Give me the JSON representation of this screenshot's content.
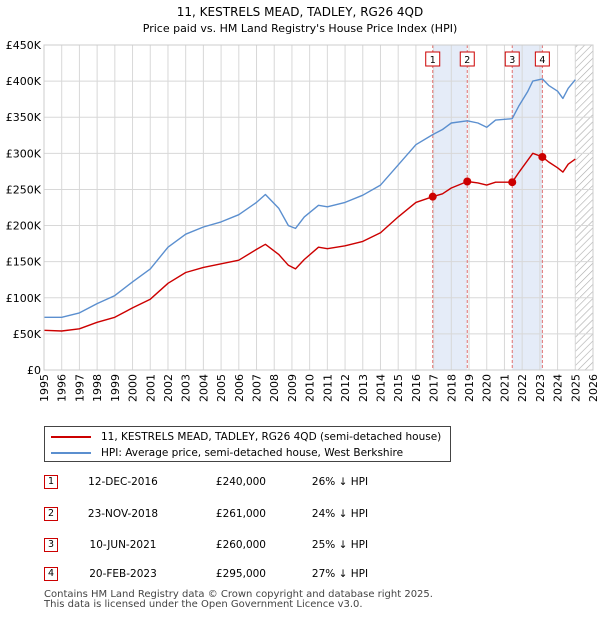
{
  "chart_data": {
    "type": "line",
    "title": "11, KESTRELS MEAD, TADLEY, RG26 4QD",
    "subtitle": "Price paid vs. HM Land Registry's House Price Index (HPI)",
    "xlim": [
      1995,
      2026
    ],
    "ylim": [
      0,
      450000
    ],
    "x_ticks": [
      1995,
      1996,
      1997,
      1998,
      1999,
      2000,
      2001,
      2002,
      2003,
      2004,
      2005,
      2006,
      2007,
      2008,
      2009,
      2010,
      2011,
      2012,
      2013,
      2014,
      2015,
      2016,
      2017,
      2018,
      2019,
      2020,
      2021,
      2022,
      2023,
      2024,
      2025,
      2026
    ],
    "y_ticks": [
      {
        "value": 0,
        "label": "£0"
      },
      {
        "value": 50000,
        "label": "£50K"
      },
      {
        "value": 100000,
        "label": "£100K"
      },
      {
        "value": 150000,
        "label": "£150K"
      },
      {
        "value": 200000,
        "label": "£200K"
      },
      {
        "value": 250000,
        "label": "£250K"
      },
      {
        "value": 300000,
        "label": "£300K"
      },
      {
        "value": 350000,
        "label": "£350K"
      },
      {
        "value": 400000,
        "label": "£400K"
      },
      {
        "value": 450000,
        "label": "£450K"
      }
    ],
    "grid": true,
    "forecast_from": 2025.0,
    "series": [
      {
        "name": "11, KESTRELS MEAD, TADLEY, RG26 4QD (semi-detached house)",
        "color": "#cc0000",
        "points": [
          [
            1995,
            55000
          ],
          [
            1996,
            54000
          ],
          [
            1997,
            57000
          ],
          [
            1998,
            66000
          ],
          [
            1999,
            73000
          ],
          [
            2000,
            86000
          ],
          [
            2001,
            98000
          ],
          [
            2002,
            120000
          ],
          [
            2003,
            135000
          ],
          [
            2004,
            142000
          ],
          [
            2005,
            147000
          ],
          [
            2006,
            152000
          ],
          [
            2007,
            167000
          ],
          [
            2007.5,
            174000
          ],
          [
            2008.25,
            160000
          ],
          [
            2008.8,
            145000
          ],
          [
            2009.2,
            140000
          ],
          [
            2009.7,
            153000
          ],
          [
            2010.5,
            170000
          ],
          [
            2011,
            168000
          ],
          [
            2012,
            172000
          ],
          [
            2013,
            178000
          ],
          [
            2014,
            190000
          ],
          [
            2015,
            212000
          ],
          [
            2016,
            232000
          ],
          [
            2016.95,
            240000
          ],
          [
            2017.5,
            244000
          ],
          [
            2018,
            252000
          ],
          [
            2018.9,
            261000
          ],
          [
            2019.5,
            259000
          ],
          [
            2020,
            256000
          ],
          [
            2020.5,
            260000
          ],
          [
            2021.44,
            260000
          ],
          [
            2021.8,
            273000
          ],
          [
            2022.3,
            290000
          ],
          [
            2022.6,
            300000
          ],
          [
            2023.14,
            295000
          ],
          [
            2023.5,
            288000
          ],
          [
            2024,
            280000
          ],
          [
            2024.3,
            274000
          ],
          [
            2024.6,
            285000
          ],
          [
            2025,
            292000
          ]
        ]
      },
      {
        "name": "HPI: Average price, semi-detached house, West Berkshire",
        "color": "#5b8fcf",
        "points": [
          [
            1995,
            73000
          ],
          [
            1996,
            73000
          ],
          [
            1997,
            79000
          ],
          [
            1998,
            92000
          ],
          [
            1999,
            103000
          ],
          [
            2000,
            122000
          ],
          [
            2001,
            140000
          ],
          [
            2002,
            170000
          ],
          [
            2003,
            188000
          ],
          [
            2004,
            198000
          ],
          [
            2005,
            205000
          ],
          [
            2006,
            215000
          ],
          [
            2007,
            232000
          ],
          [
            2007.5,
            243000
          ],
          [
            2008.25,
            224000
          ],
          [
            2008.8,
            200000
          ],
          [
            2009.2,
            196000
          ],
          [
            2009.7,
            212000
          ],
          [
            2010.5,
            228000
          ],
          [
            2011,
            226000
          ],
          [
            2012,
            232000
          ],
          [
            2013,
            242000
          ],
          [
            2014,
            256000
          ],
          [
            2015,
            284000
          ],
          [
            2016,
            312000
          ],
          [
            2016.95,
            326000
          ],
          [
            2017.5,
            333000
          ],
          [
            2018,
            342000
          ],
          [
            2018.9,
            345000
          ],
          [
            2019.5,
            342000
          ],
          [
            2020,
            336000
          ],
          [
            2020.5,
            346000
          ],
          [
            2021.44,
            348000
          ],
          [
            2021.8,
            365000
          ],
          [
            2022.3,
            385000
          ],
          [
            2022.6,
            400000
          ],
          [
            2023.14,
            403000
          ],
          [
            2023.5,
            394000
          ],
          [
            2024,
            386000
          ],
          [
            2024.3,
            376000
          ],
          [
            2024.6,
            390000
          ],
          [
            2025,
            402000
          ]
        ]
      }
    ],
    "transactions": [
      {
        "num": "1",
        "date": "12-DEC-2016",
        "x": 2016.95,
        "price": "£240,000",
        "value": 240000,
        "hpi": "26% ↓ HPI",
        "band_end": 2018.9
      },
      {
        "num": "2",
        "date": "23-NOV-2018",
        "x": 2018.9,
        "price": "£261,000",
        "value": 261000,
        "hpi": "24% ↓ HPI",
        "band_end": null
      },
      {
        "num": "3",
        "date": "10-JUN-2021",
        "x": 2021.44,
        "price": "£260,000",
        "value": 260000,
        "hpi": "25% ↓ HPI",
        "band_end": 2023.14
      },
      {
        "num": "4",
        "date": "20-FEB-2023",
        "x": 2023.14,
        "price": "£295,000",
        "value": 295000,
        "hpi": "27% ↓ HPI",
        "band_end": null
      }
    ],
    "colors": {
      "grid": "#d8d8d8",
      "band": "#dce6f5",
      "marker_border": "#cc0000",
      "vline": "#e07070"
    }
  },
  "legend": {
    "property_label": "11, KESTRELS MEAD, TADLEY, RG26 4QD (semi-detached house)",
    "hpi_label": "HPI: Average price, semi-detached house, West Berkshire"
  },
  "footer": {
    "line1": "Contains HM Land Registry data © Crown copyright and database right 2025.",
    "line2": "This data is licensed under the Open Government Licence v3.0."
  }
}
